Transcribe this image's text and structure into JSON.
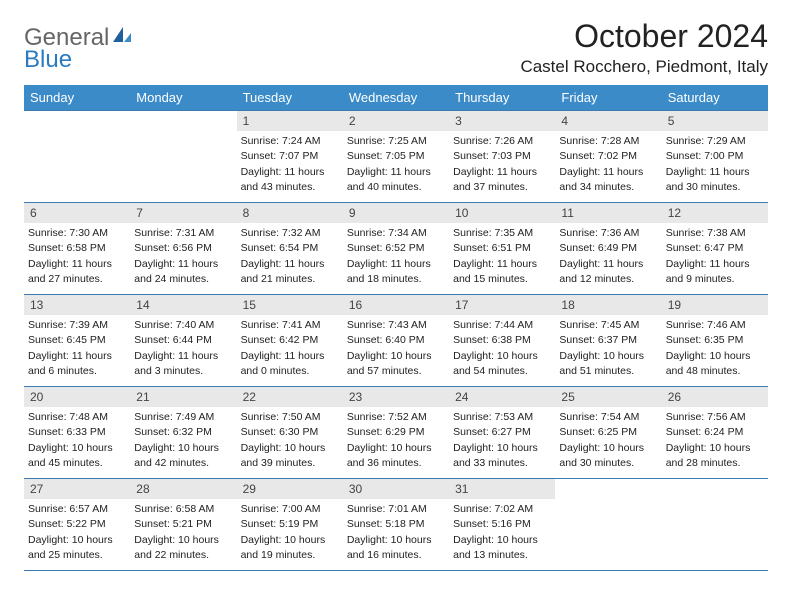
{
  "logo": {
    "text1": "General",
    "text2": "Blue"
  },
  "title": "October 2024",
  "location": "Castel Rocchero, Piedmont, Italy",
  "colors": {
    "header_bg": "#3b8bc9",
    "header_text": "#ffffff",
    "daynum_bg": "#e8e8e8",
    "border": "#3b7bb0",
    "logo_blue": "#2b7bbf"
  },
  "weekdays": [
    "Sunday",
    "Monday",
    "Tuesday",
    "Wednesday",
    "Thursday",
    "Friday",
    "Saturday"
  ],
  "weeks": [
    [
      null,
      null,
      {
        "n": "1",
        "sr": "Sunrise: 7:24 AM",
        "ss": "Sunset: 7:07 PM",
        "d1": "Daylight: 11 hours",
        "d2": "and 43 minutes."
      },
      {
        "n": "2",
        "sr": "Sunrise: 7:25 AM",
        "ss": "Sunset: 7:05 PM",
        "d1": "Daylight: 11 hours",
        "d2": "and 40 minutes."
      },
      {
        "n": "3",
        "sr": "Sunrise: 7:26 AM",
        "ss": "Sunset: 7:03 PM",
        "d1": "Daylight: 11 hours",
        "d2": "and 37 minutes."
      },
      {
        "n": "4",
        "sr": "Sunrise: 7:28 AM",
        "ss": "Sunset: 7:02 PM",
        "d1": "Daylight: 11 hours",
        "d2": "and 34 minutes."
      },
      {
        "n": "5",
        "sr": "Sunrise: 7:29 AM",
        "ss": "Sunset: 7:00 PM",
        "d1": "Daylight: 11 hours",
        "d2": "and 30 minutes."
      }
    ],
    [
      {
        "n": "6",
        "sr": "Sunrise: 7:30 AM",
        "ss": "Sunset: 6:58 PM",
        "d1": "Daylight: 11 hours",
        "d2": "and 27 minutes."
      },
      {
        "n": "7",
        "sr": "Sunrise: 7:31 AM",
        "ss": "Sunset: 6:56 PM",
        "d1": "Daylight: 11 hours",
        "d2": "and 24 minutes."
      },
      {
        "n": "8",
        "sr": "Sunrise: 7:32 AM",
        "ss": "Sunset: 6:54 PM",
        "d1": "Daylight: 11 hours",
        "d2": "and 21 minutes."
      },
      {
        "n": "9",
        "sr": "Sunrise: 7:34 AM",
        "ss": "Sunset: 6:52 PM",
        "d1": "Daylight: 11 hours",
        "d2": "and 18 minutes."
      },
      {
        "n": "10",
        "sr": "Sunrise: 7:35 AM",
        "ss": "Sunset: 6:51 PM",
        "d1": "Daylight: 11 hours",
        "d2": "and 15 minutes."
      },
      {
        "n": "11",
        "sr": "Sunrise: 7:36 AM",
        "ss": "Sunset: 6:49 PM",
        "d1": "Daylight: 11 hours",
        "d2": "and 12 minutes."
      },
      {
        "n": "12",
        "sr": "Sunrise: 7:38 AM",
        "ss": "Sunset: 6:47 PM",
        "d1": "Daylight: 11 hours",
        "d2": "and 9 minutes."
      }
    ],
    [
      {
        "n": "13",
        "sr": "Sunrise: 7:39 AM",
        "ss": "Sunset: 6:45 PM",
        "d1": "Daylight: 11 hours",
        "d2": "and 6 minutes."
      },
      {
        "n": "14",
        "sr": "Sunrise: 7:40 AM",
        "ss": "Sunset: 6:44 PM",
        "d1": "Daylight: 11 hours",
        "d2": "and 3 minutes."
      },
      {
        "n": "15",
        "sr": "Sunrise: 7:41 AM",
        "ss": "Sunset: 6:42 PM",
        "d1": "Daylight: 11 hours",
        "d2": "and 0 minutes."
      },
      {
        "n": "16",
        "sr": "Sunrise: 7:43 AM",
        "ss": "Sunset: 6:40 PM",
        "d1": "Daylight: 10 hours",
        "d2": "and 57 minutes."
      },
      {
        "n": "17",
        "sr": "Sunrise: 7:44 AM",
        "ss": "Sunset: 6:38 PM",
        "d1": "Daylight: 10 hours",
        "d2": "and 54 minutes."
      },
      {
        "n": "18",
        "sr": "Sunrise: 7:45 AM",
        "ss": "Sunset: 6:37 PM",
        "d1": "Daylight: 10 hours",
        "d2": "and 51 minutes."
      },
      {
        "n": "19",
        "sr": "Sunrise: 7:46 AM",
        "ss": "Sunset: 6:35 PM",
        "d1": "Daylight: 10 hours",
        "d2": "and 48 minutes."
      }
    ],
    [
      {
        "n": "20",
        "sr": "Sunrise: 7:48 AM",
        "ss": "Sunset: 6:33 PM",
        "d1": "Daylight: 10 hours",
        "d2": "and 45 minutes."
      },
      {
        "n": "21",
        "sr": "Sunrise: 7:49 AM",
        "ss": "Sunset: 6:32 PM",
        "d1": "Daylight: 10 hours",
        "d2": "and 42 minutes."
      },
      {
        "n": "22",
        "sr": "Sunrise: 7:50 AM",
        "ss": "Sunset: 6:30 PM",
        "d1": "Daylight: 10 hours",
        "d2": "and 39 minutes."
      },
      {
        "n": "23",
        "sr": "Sunrise: 7:52 AM",
        "ss": "Sunset: 6:29 PM",
        "d1": "Daylight: 10 hours",
        "d2": "and 36 minutes."
      },
      {
        "n": "24",
        "sr": "Sunrise: 7:53 AM",
        "ss": "Sunset: 6:27 PM",
        "d1": "Daylight: 10 hours",
        "d2": "and 33 minutes."
      },
      {
        "n": "25",
        "sr": "Sunrise: 7:54 AM",
        "ss": "Sunset: 6:25 PM",
        "d1": "Daylight: 10 hours",
        "d2": "and 30 minutes."
      },
      {
        "n": "26",
        "sr": "Sunrise: 7:56 AM",
        "ss": "Sunset: 6:24 PM",
        "d1": "Daylight: 10 hours",
        "d2": "and 28 minutes."
      }
    ],
    [
      {
        "n": "27",
        "sr": "Sunrise: 6:57 AM",
        "ss": "Sunset: 5:22 PM",
        "d1": "Daylight: 10 hours",
        "d2": "and 25 minutes."
      },
      {
        "n": "28",
        "sr": "Sunrise: 6:58 AM",
        "ss": "Sunset: 5:21 PM",
        "d1": "Daylight: 10 hours",
        "d2": "and 22 minutes."
      },
      {
        "n": "29",
        "sr": "Sunrise: 7:00 AM",
        "ss": "Sunset: 5:19 PM",
        "d1": "Daylight: 10 hours",
        "d2": "and 19 minutes."
      },
      {
        "n": "30",
        "sr": "Sunrise: 7:01 AM",
        "ss": "Sunset: 5:18 PM",
        "d1": "Daylight: 10 hours",
        "d2": "and 16 minutes."
      },
      {
        "n": "31",
        "sr": "Sunrise: 7:02 AM",
        "ss": "Sunset: 5:16 PM",
        "d1": "Daylight: 10 hours",
        "d2": "and 13 minutes."
      },
      null,
      null
    ]
  ]
}
